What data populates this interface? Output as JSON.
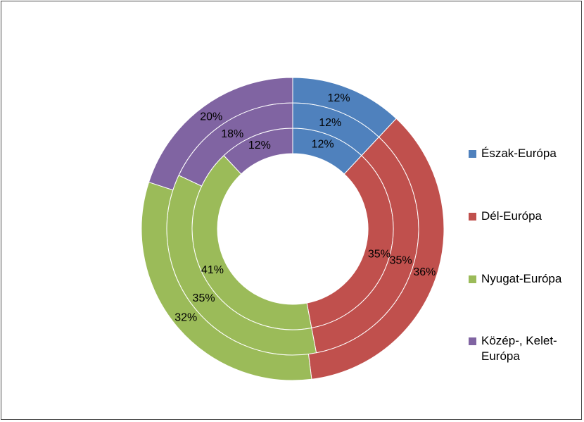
{
  "chart_data": {
    "type": "pie",
    "variant": "multi-ring donut",
    "categories": [
      "Észak-Európa",
      "Dél-Európa",
      "Nyugat-Európa",
      "Közép-, Kelet-Európa"
    ],
    "colors": [
      "#4F81BD",
      "#C0504D",
      "#9BBB59",
      "#8064A2"
    ],
    "rings": [
      {
        "position": "inner",
        "values": [
          12,
          35,
          41,
          12
        ],
        "labels": [
          "12%",
          "35%",
          "41%",
          "12%"
        ]
      },
      {
        "position": "middle",
        "values": [
          12,
          35,
          35,
          18
        ],
        "labels": [
          "12%",
          "35%",
          "35%",
          "18%"
        ]
      },
      {
        "position": "outer",
        "values": [
          12,
          36,
          32,
          20
        ],
        "labels": [
          "12%",
          "36%",
          "32%",
          "20%"
        ]
      }
    ],
    "legend_position": "right",
    "title": ""
  }
}
